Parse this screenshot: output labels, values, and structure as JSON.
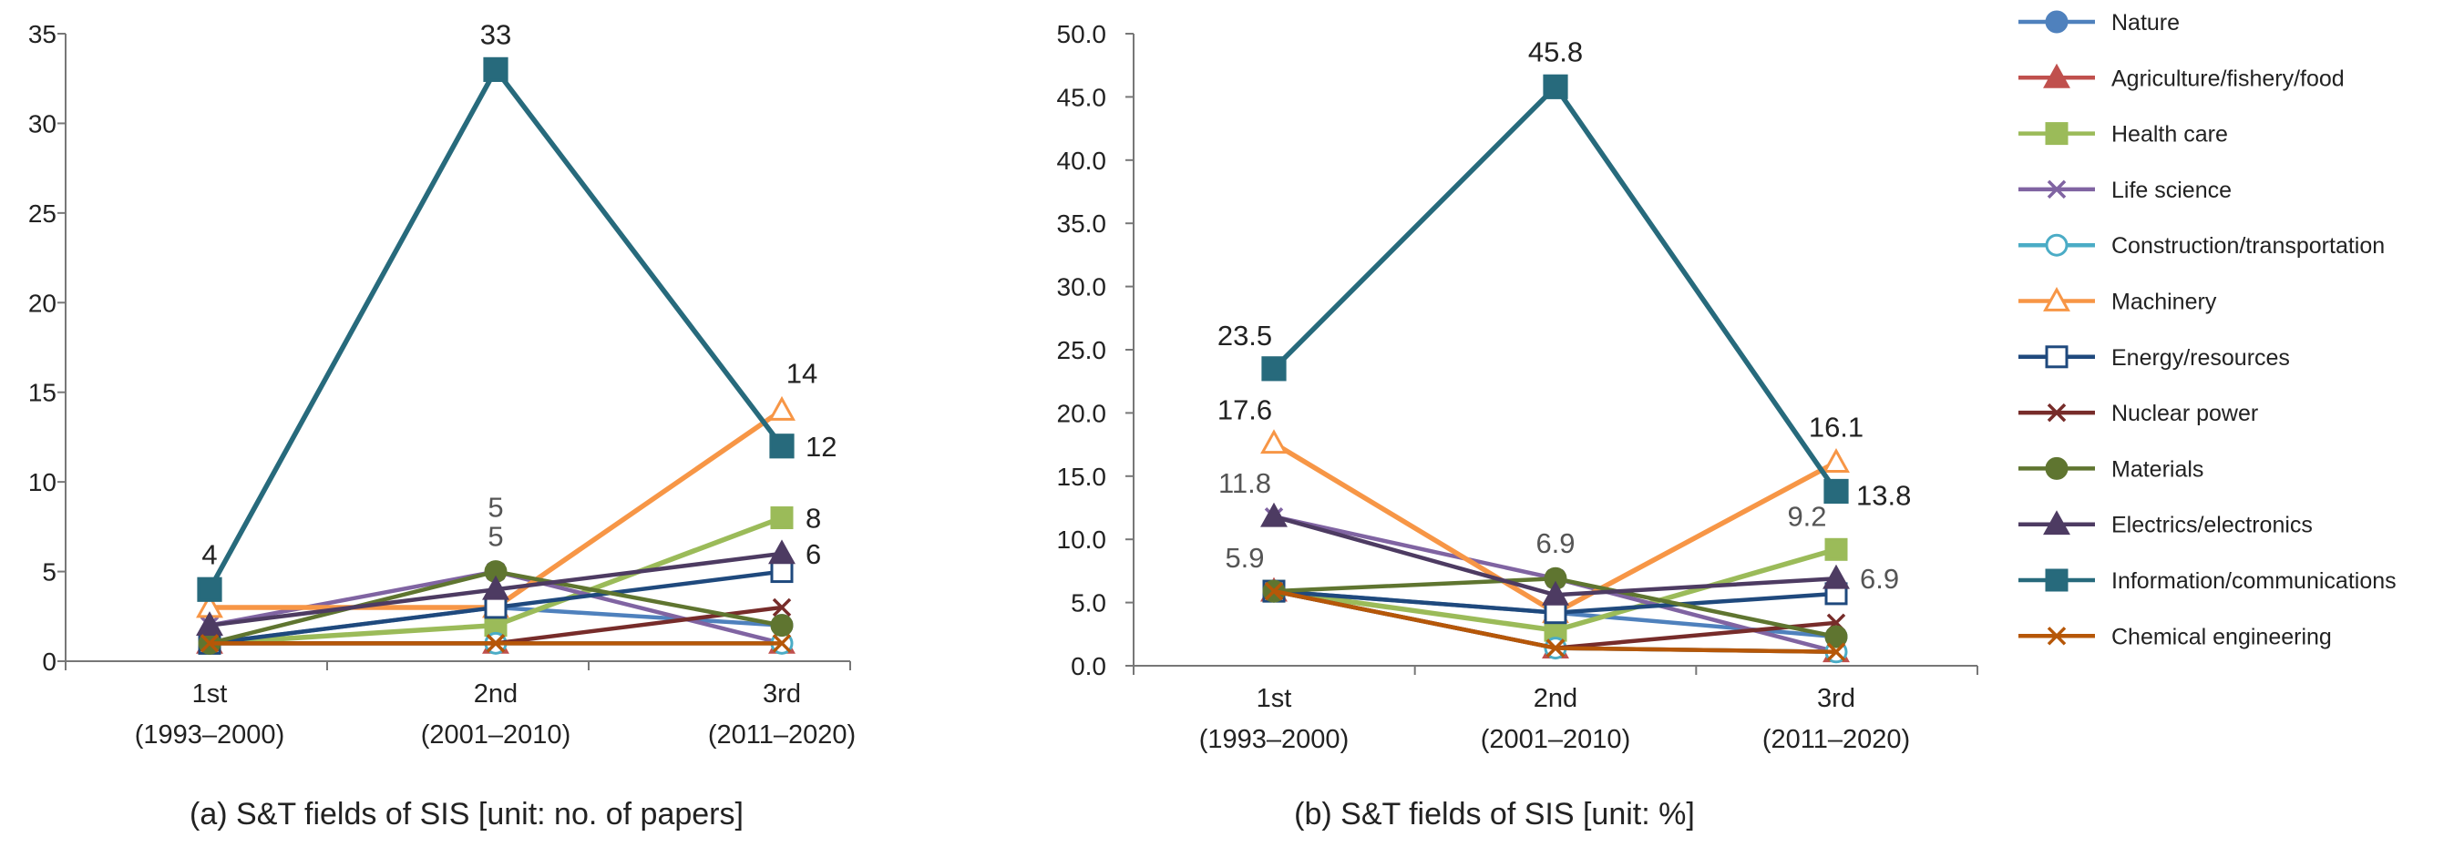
{
  "chart_data": [
    {
      "type": "line",
      "title": "(a) S&T fields of SIS [unit: no. of papers]",
      "categories": [
        {
          "label": "1st",
          "sub": "(1993–2000)"
        },
        {
          "label": "2nd",
          "sub": "(2001–2010)"
        },
        {
          "label": "3rd",
          "sub": "(2011–2020)"
        }
      ],
      "ylim": [
        0,
        35
      ],
      "yticks": [
        "0",
        "5",
        "10",
        "15",
        "20",
        "25",
        "30",
        "35"
      ],
      "series": [
        {
          "name": "Nature",
          "values": [
            1,
            3,
            2
          ]
        },
        {
          "name": "Agriculture/fishery/food",
          "values": [
            1,
            1,
            1
          ]
        },
        {
          "name": "Health care",
          "values": [
            1,
            2,
            8
          ]
        },
        {
          "name": "Life science",
          "values": [
            2,
            5,
            1
          ]
        },
        {
          "name": "Construction/transportation",
          "values": [
            1,
            1,
            1
          ]
        },
        {
          "name": "Machinery",
          "values": [
            3,
            3,
            14
          ]
        },
        {
          "name": "Energy/resources",
          "values": [
            1,
            3,
            5
          ]
        },
        {
          "name": "Nuclear power",
          "values": [
            1,
            1,
            3
          ]
        },
        {
          "name": "Materials",
          "values": [
            1,
            5,
            2
          ]
        },
        {
          "name": "Electrics/electronics",
          "values": [
            2,
            4,
            6
          ]
        },
        {
          "name": "Information/communications",
          "values": [
            4,
            33,
            12
          ]
        },
        {
          "name": "Chemical engineering",
          "values": [
            1,
            1,
            1
          ]
        }
      ],
      "labels": [
        {
          "text": "4",
          "series": 10,
          "point": 0,
          "pos": "above"
        },
        {
          "text": "33",
          "series": 10,
          "point": 1,
          "pos": "above"
        },
        {
          "text": "5",
          "series": 3,
          "point": 1,
          "pos": "above2",
          "grey": true
        },
        {
          "text": "5",
          "series": 8,
          "point": 1,
          "pos": "above",
          "grey": true
        },
        {
          "text": "14",
          "series": 5,
          "point": 2,
          "pos": "above-right"
        },
        {
          "text": "12",
          "series": 10,
          "point": 2,
          "pos": "right"
        },
        {
          "text": "8",
          "series": 2,
          "point": 2,
          "pos": "right"
        },
        {
          "text": "6",
          "series": 9,
          "point": 2,
          "pos": "right"
        }
      ]
    },
    {
      "type": "line",
      "title": "(b) S&T fields of SIS [unit: %]",
      "categories": [
        {
          "label": "1st",
          "sub": "(1993–2000)"
        },
        {
          "label": "2nd",
          "sub": "(2001–2010)"
        },
        {
          "label": "3rd",
          "sub": "(2011–2020)"
        }
      ],
      "ylim": [
        0,
        50
      ],
      "yticks": [
        "0.0",
        "5.0",
        "10.0",
        "15.0",
        "20.0",
        "25.0",
        "30.0",
        "35.0",
        "40.0",
        "45.0",
        "50.0"
      ],
      "series": [
        {
          "name": "Nature",
          "values": [
            5.9,
            4.2,
            2.3
          ]
        },
        {
          "name": "Agriculture/fishery/food",
          "values": [
            5.9,
            1.4,
            1.1
          ]
        },
        {
          "name": "Health care",
          "values": [
            5.9,
            2.8,
            9.2
          ]
        },
        {
          "name": "Life science",
          "values": [
            11.8,
            6.9,
            1.1
          ]
        },
        {
          "name": "Construction/transportation",
          "values": [
            5.9,
            1.4,
            1.1
          ]
        },
        {
          "name": "Machinery",
          "values": [
            17.6,
            4.2,
            16.1
          ]
        },
        {
          "name": "Energy/resources",
          "values": [
            5.9,
            4.2,
            5.7
          ]
        },
        {
          "name": "Nuclear power",
          "values": [
            5.9,
            1.4,
            3.4
          ]
        },
        {
          "name": "Materials",
          "values": [
            5.9,
            6.9,
            2.3
          ]
        },
        {
          "name": "Electrics/electronics",
          "values": [
            11.8,
            5.6,
            6.9
          ]
        },
        {
          "name": "Information/communications",
          "values": [
            23.5,
            45.8,
            13.8
          ]
        },
        {
          "name": "Chemical engineering",
          "values": [
            5.9,
            1.4,
            1.1
          ]
        }
      ],
      "labels": [
        {
          "text": "23.5",
          "series": 10,
          "point": 0,
          "pos": "above-left"
        },
        {
          "text": "45.8",
          "series": 10,
          "point": 1,
          "pos": "above"
        },
        {
          "text": "17.6",
          "series": 5,
          "point": 0,
          "pos": "above-left"
        },
        {
          "text": "11.8",
          "series": 3,
          "point": 0,
          "pos": "above-left",
          "grey": true
        },
        {
          "text": "5.9",
          "series": 8,
          "point": 0,
          "pos": "above-left",
          "grey": true
        },
        {
          "text": "6.9",
          "series": 8,
          "point": 1,
          "pos": "above",
          "grey": true
        },
        {
          "text": "16.1",
          "series": 5,
          "point": 2,
          "pos": "above"
        },
        {
          "text": "13.8",
          "series": 10,
          "point": 2,
          "pos": "right-low"
        },
        {
          "text": "9.2",
          "series": 2,
          "point": 2,
          "pos": "above-left",
          "grey": true
        },
        {
          "text": "6.9",
          "series": 9,
          "point": 2,
          "pos": "right",
          "grey": true
        }
      ]
    }
  ],
  "legend": {
    "position": "right",
    "items": [
      {
        "name": "Nature",
        "color": "#4F81BD",
        "marker": "circle",
        "filled": true
      },
      {
        "name": "Agriculture/fishery/food",
        "color": "#C0504D",
        "marker": "triangle",
        "filled": true
      },
      {
        "name": "Health care",
        "color": "#9BBB59",
        "marker": "square",
        "filled": true
      },
      {
        "name": "Life science",
        "color": "#8064A2",
        "marker": "x",
        "filled": false
      },
      {
        "name": "Construction/transportation",
        "color": "#4BACC6",
        "marker": "circle",
        "filled": false
      },
      {
        "name": "Machinery",
        "color": "#F79646",
        "marker": "triangle",
        "filled": false
      },
      {
        "name": "Energy/resources",
        "color": "#1F497D",
        "marker": "square",
        "filled": false
      },
      {
        "name": "Nuclear power",
        "color": "#772C2A",
        "marker": "x",
        "filled": false
      },
      {
        "name": "Materials",
        "color": "#5F7530",
        "marker": "circle",
        "filled": true
      },
      {
        "name": "Electrics/electronics",
        "color": "#4D3B62",
        "marker": "triangle",
        "filled": true
      },
      {
        "name": "Information/communications",
        "color": "#276A7C",
        "marker": "square",
        "filled": true
      },
      {
        "name": "Chemical engineering",
        "color": "#B65708",
        "marker": "x",
        "filled": false
      }
    ]
  }
}
